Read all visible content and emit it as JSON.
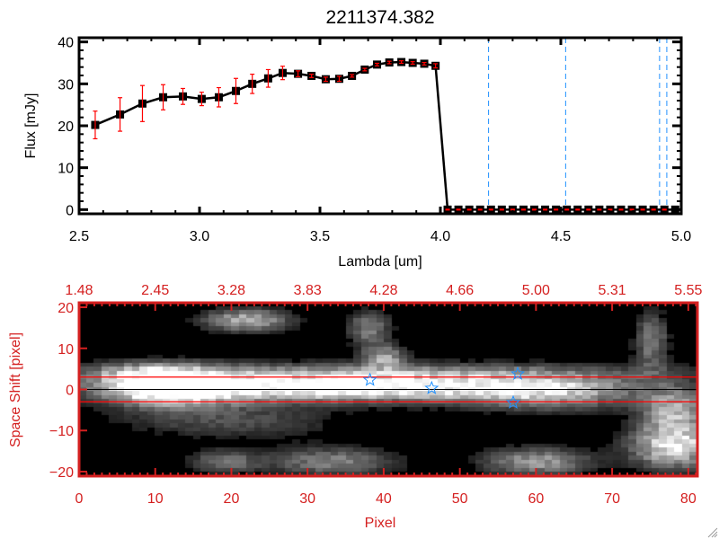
{
  "chart_data": [
    {
      "type": "line",
      "title": "2211374.382",
      "xlabel": "Lambda [um]",
      "ylabel": "Flux [mJy]",
      "xlim": [
        2.5,
        5.0
      ],
      "ylim": [
        -1,
        41
      ],
      "xticks": [
        "2.5",
        "3.0",
        "3.5",
        "4.0",
        "4.5",
        "5.0"
      ],
      "xtick_values": [
        2.5,
        3.0,
        3.5,
        4.0,
        4.5,
        5.0
      ],
      "yticks": [
        "0",
        "10",
        "20",
        "30",
        "40"
      ],
      "ytick_values": [
        0,
        10,
        20,
        30,
        40
      ],
      "grid": false,
      "line_color": "#000000",
      "errorbar_color": "#ff0000",
      "x": [
        2.567,
        2.67,
        2.763,
        2.849,
        2.931,
        3.009,
        3.08,
        3.151,
        3.219,
        3.285,
        3.345,
        3.409,
        3.465,
        3.524,
        3.58,
        3.633,
        3.686,
        3.737,
        3.788,
        3.838,
        3.885,
        3.933,
        3.98,
        4.03,
        4.075,
        4.12,
        4.165,
        4.21,
        4.255,
        4.3,
        4.345,
        4.39,
        4.435,
        4.48,
        4.525,
        4.57,
        4.615,
        4.66,
        4.705,
        4.75,
        4.795,
        4.84,
        4.885,
        4.93,
        4.975
      ],
      "y": [
        20.2,
        22.7,
        25.3,
        26.8,
        27.0,
        26.4,
        26.8,
        28.3,
        30.0,
        31.3,
        32.6,
        32.4,
        31.9,
        31.1,
        31.2,
        31.9,
        33.4,
        34.6,
        35.1,
        35.2,
        35.0,
        34.8,
        34.3,
        0,
        0,
        0,
        0,
        0,
        0,
        0,
        0,
        0,
        0,
        0,
        0,
        0,
        0,
        0,
        0,
        0,
        0,
        0,
        0,
        0,
        0
      ],
      "yerr": [
        3.3,
        4.0,
        4.3,
        3.0,
        1.9,
        1.6,
        2.3,
        3.0,
        2.3,
        2.1,
        1.6,
        0.7,
        0.4,
        0.5,
        0.6,
        0.3,
        0.3,
        0.3,
        0.3,
        0.3,
        0.3,
        0.3,
        0.5,
        0.1,
        0.1,
        0.1,
        0.1,
        0.1,
        0.1,
        0.1,
        0.1,
        0.1,
        0.1,
        0.1,
        0.1,
        0.1,
        0.1,
        0.1,
        0.1,
        0.1,
        0.1,
        0.1,
        0.1,
        0.1,
        0.1
      ],
      "vlines": [
        4.2,
        4.52,
        4.91,
        4.94
      ],
      "vline_color": "#1e90ff",
      "hline": 0,
      "hline_color": "#ff0000"
    },
    {
      "type": "heatmap",
      "xlabel": "Pixel",
      "ylabel": "Space Shift [pixel]",
      "xlim": [
        0,
        81.2
      ],
      "ylim": [
        -21.1,
        21.1
      ],
      "xticks": [
        "0",
        "10",
        "20",
        "30",
        "40",
        "50",
        "60",
        "70",
        "80"
      ],
      "xtick_values": [
        0,
        10,
        20,
        30,
        40,
        50,
        60,
        70,
        80
      ],
      "yticks": [
        "20",
        "10",
        "0",
        "−10",
        "−20"
      ],
      "ytick_values": [
        20,
        10,
        0,
        -10,
        -20
      ],
      "top_axis_ticks": [
        "1.48",
        "2.45",
        "3.28",
        "3.83",
        "4.28",
        "4.66",
        "5.00",
        "5.31",
        "5.55"
      ],
      "colormap": "grayscale",
      "axis_color": "#d42020",
      "hlines": [
        3,
        -3
      ],
      "hline_color": "#ff0000",
      "center_line": 0,
      "center_line_color": "#000000",
      "markers": {
        "symbol": "star",
        "color": "#1e90ff",
        "points": [
          [
            38.2,
            2.3
          ],
          [
            46.3,
            0.3
          ],
          [
            57.6,
            3.8
          ],
          [
            57.0,
            -3.2
          ]
        ]
      }
    }
  ]
}
